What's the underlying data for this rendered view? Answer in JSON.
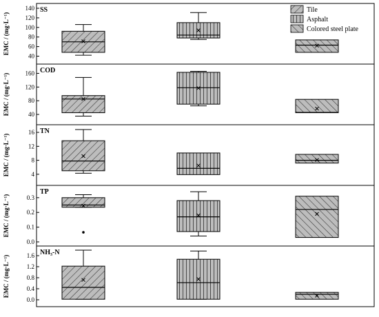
{
  "chart_data": {
    "type": "box",
    "categories": [
      "Tile",
      "Asphalt",
      "Colored steel plate"
    ],
    "legend": {
      "entries": [
        "Tile",
        "Asphalt",
        "Colored steel plate"
      ],
      "placement": "top-right"
    },
    "y_label_template": "EMC / (mg·L⁻¹)",
    "panels": [
      {
        "title": "SS",
        "ylim": [
          35,
          140
        ],
        "yticks": [
          40,
          60,
          80,
          100,
          120,
          140
        ],
        "tick_labels": [
          "40",
          "60",
          "80",
          "100",
          "120",
          "140"
        ],
        "boxes": [
          {
            "category": "Tile",
            "whisker_low": 42,
            "q1": 48,
            "median": 70,
            "q3": 92,
            "whisker_high": 106,
            "mean": 71,
            "outliers": []
          },
          {
            "category": "Asphalt",
            "whisker_low": 75,
            "q1": 78,
            "median": 84,
            "q3": 110,
            "whisker_high": 131,
            "mean": 94,
            "outliers": []
          },
          {
            "category": "Colored steel plate",
            "whisker_low": null,
            "q1": 48,
            "median": 63,
            "q3": 74,
            "whisker_high": null,
            "mean": 62,
            "outliers": []
          }
        ]
      },
      {
        "title": "COD",
        "ylim": [
          30,
          175
        ],
        "yticks": [
          40,
          80,
          120,
          160
        ],
        "tick_labels": [
          "40",
          "80",
          "120",
          "160"
        ],
        "boxes": [
          {
            "category": "Tile",
            "whisker_low": 35,
            "q1": 45,
            "median": 85,
            "q3": 95,
            "whisker_high": 148,
            "mean": 85,
            "outliers": []
          },
          {
            "category": "Asphalt",
            "whisker_low": 65,
            "q1": 70,
            "median": 118,
            "q3": 163,
            "whisker_high": 166,
            "mean": 117,
            "outliers": []
          },
          {
            "category": "Colored steel plate",
            "whisker_low": null,
            "q1": 45,
            "median": 46,
            "q3": 84,
            "whisker_high": null,
            "mean": 57,
            "outliers": []
          }
        ]
      },
      {
        "title": "TN",
        "ylim": [
          2,
          17
        ],
        "yticks": [
          4,
          8,
          12,
          16
        ],
        "tick_labels": [
          "4",
          "8",
          "12",
          "16"
        ],
        "boxes": [
          {
            "category": "Tile",
            "whisker_low": 4.3,
            "q1": 5.0,
            "median": 7.8,
            "q3": 13.6,
            "whisker_high": 16.8,
            "mean": 9.2,
            "outliers": []
          },
          {
            "category": "Asphalt",
            "whisker_low": null,
            "q1": 3.9,
            "median": 5.7,
            "q3": 10.1,
            "whisker_high": null,
            "mean": 6.5,
            "outliers": []
          },
          {
            "category": "Colored steel plate",
            "whisker_low": null,
            "q1": 7.2,
            "median": 8.0,
            "q3": 9.7,
            "whisker_high": null,
            "mean": 8.1,
            "outliers": []
          }
        ]
      },
      {
        "title": "TP",
        "ylim": [
          0,
          0.36
        ],
        "yticks": [
          0.0,
          0.1,
          0.2,
          0.3
        ],
        "tick_labels": [
          "0.0",
          "0.1",
          "0.2",
          "0.3"
        ],
        "boxes": [
          {
            "category": "Tile",
            "whisker_low": 0.235,
            "q1": 0.235,
            "median": 0.25,
            "q3": 0.3,
            "whisker_high": 0.32,
            "mean": 0.245,
            "outliers": [
              0.065
            ]
          },
          {
            "category": "Asphalt",
            "whisker_low": 0.04,
            "q1": 0.07,
            "median": 0.17,
            "q3": 0.28,
            "whisker_high": 0.34,
            "mean": 0.18,
            "outliers": []
          },
          {
            "category": "Colored steel plate",
            "whisker_low": null,
            "q1": 0.03,
            "median": 0.22,
            "q3": 0.31,
            "whisker_high": null,
            "mean": 0.19,
            "outliers": []
          }
        ]
      },
      {
        "title": "NH₃-N",
        "ylim": [
          -0.1,
          1.8
        ],
        "yticks": [
          0.0,
          0.4,
          0.8,
          1.2,
          1.6
        ],
        "tick_labels": [
          "0.0",
          "0.4",
          "0.8",
          "1.2",
          "1.6"
        ],
        "boxes": [
          {
            "category": "Tile",
            "whisker_low": 0.02,
            "q1": 0.02,
            "median": 0.45,
            "q3": 1.22,
            "whisker_high": 1.8,
            "mean": 0.72,
            "outliers": []
          },
          {
            "category": "Asphalt",
            "whisker_low": 0.02,
            "q1": 0.02,
            "median": 0.62,
            "q3": 1.47,
            "whisker_high": 1.77,
            "mean": 0.75,
            "outliers": []
          },
          {
            "category": "Colored steel plate",
            "whisker_low": null,
            "q1": 0.02,
            "median": 0.2,
            "q3": 0.27,
            "whisker_high": null,
            "mean": 0.15,
            "outliers": []
          }
        ]
      }
    ],
    "colors": {
      "box_fill": "#bdbdbd",
      "hatch": "#3a3a3a",
      "frame": "#000000",
      "marker": "#000000"
    },
    "grid": false
  }
}
